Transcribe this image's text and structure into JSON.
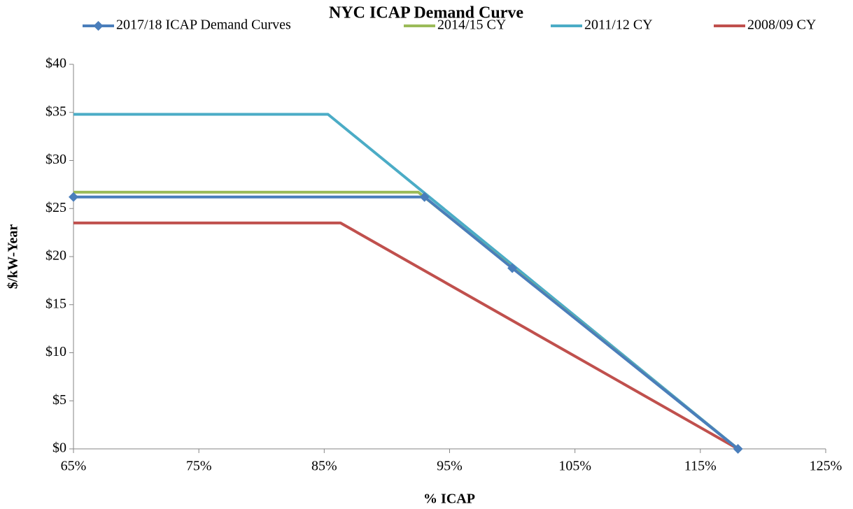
{
  "chart_data": {
    "type": "line",
    "title": "NYC ICAP Demand Curve",
    "x_label": "% ICAP",
    "y_label": "$/kW-Year",
    "series": [
      {
        "name": "2017/18 ICAP Demand Curves",
        "color": "#4a7ebb",
        "marker": "diamond",
        "x": [
          65,
          93,
          100,
          118
        ],
        "values": [
          26.2,
          26.2,
          18.8,
          0
        ]
      },
      {
        "name": "2014/15 CY",
        "color": "#9bbb59",
        "x": [
          65,
          92.5,
          118
        ],
        "values": [
          26.7,
          26.7,
          0
        ]
      },
      {
        "name": "2011/12 CY",
        "color": "#4bacc6",
        "x": [
          65,
          85.3,
          118
        ],
        "values": [
          34.8,
          34.8,
          0
        ]
      },
      {
        "name": "2008/09 CY",
        "color": "#c0504d",
        "x": [
          65,
          86.3,
          118
        ],
        "values": [
          23.5,
          23.5,
          0
        ]
      }
    ],
    "xlim": [
      65,
      125
    ],
    "xticks": [
      {
        "value": 65,
        "label": "65%"
      },
      {
        "value": 75,
        "label": "75%"
      },
      {
        "value": 85,
        "label": "85%"
      },
      {
        "value": 95,
        "label": "95%"
      },
      {
        "value": 105,
        "label": "105%"
      },
      {
        "value": 115,
        "label": "115%"
      },
      {
        "value": 125,
        "label": "125%"
      }
    ],
    "ylim": [
      0,
      40
    ],
    "yticks": [
      {
        "value": 0,
        "label": "$0"
      },
      {
        "value": 5,
        "label": "$5"
      },
      {
        "value": 10,
        "label": "$10"
      },
      {
        "value": 15,
        "label": "$15"
      },
      {
        "value": 20,
        "label": "$20"
      },
      {
        "value": 25,
        "label": "$25"
      },
      {
        "value": 30,
        "label": "$30"
      },
      {
        "value": 35,
        "label": "$35"
      },
      {
        "value": 40,
        "label": "$40"
      }
    ],
    "legend": "top"
  }
}
